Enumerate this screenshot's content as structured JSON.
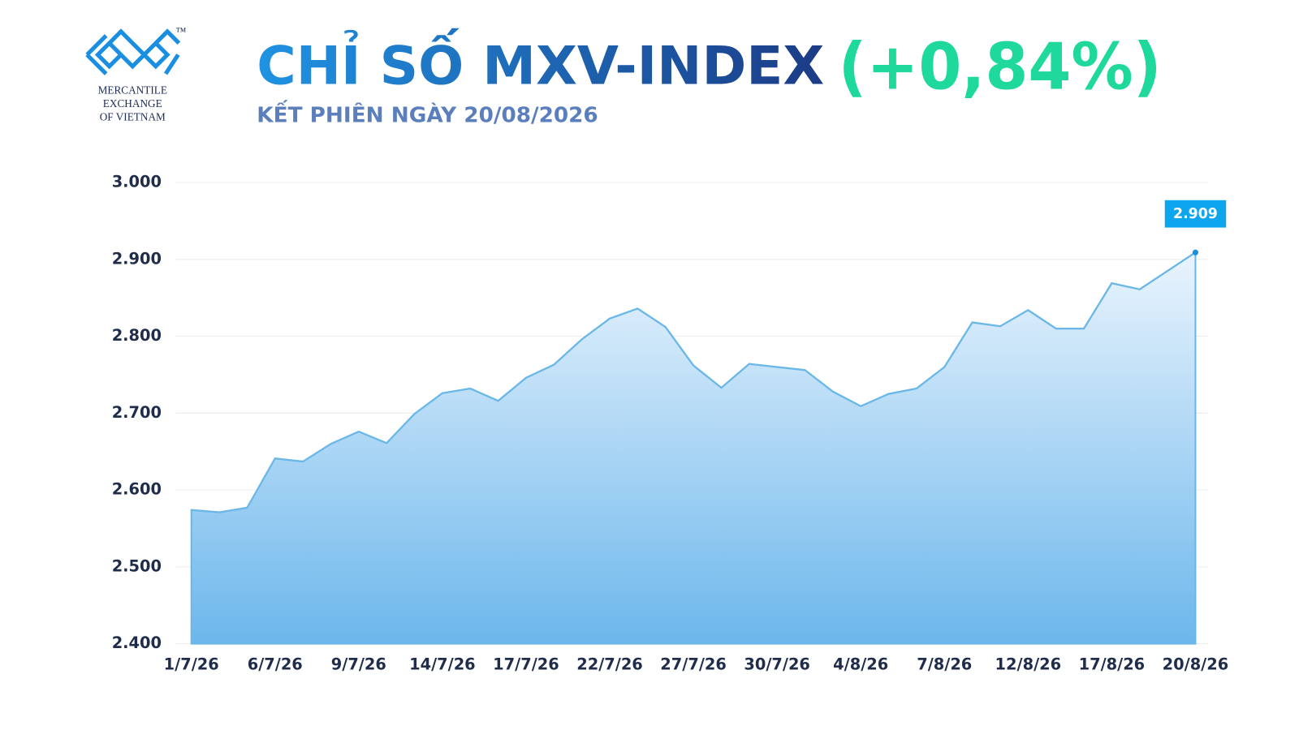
{
  "logo": {
    "mark": "™",
    "lines": [
      "MERCANTILE",
      "EXCHANGE",
      "OF VIETNAM"
    ]
  },
  "chart_data": {
    "type": "area",
    "title": "CHỈ SỐ MXV-INDEX",
    "title_change": "(+0,84%)",
    "subtitle": "KẾT PHIÊN NGÀY 20/08/2026",
    "categories": [
      "1/7/26",
      null,
      null,
      "6/7/26",
      null,
      null,
      "9/7/26",
      null,
      null,
      "14/7/26",
      null,
      null,
      "17/7/26",
      null,
      null,
      "22/7/26",
      null,
      null,
      "27/7/26",
      null,
      null,
      "30/7/26",
      null,
      null,
      "4/8/26",
      null,
      null,
      "7/8/26",
      null,
      null,
      "12/8/26",
      null,
      null,
      "17/8/26",
      null,
      null,
      "20/8/26"
    ],
    "values": [
      2574,
      2571,
      2577,
      2641,
      2637,
      2660,
      2676,
      2661,
      2699,
      2726,
      2732,
      2716,
      2746,
      2763,
      2796,
      2823,
      2836,
      2812,
      2762,
      2733,
      2764,
      2760,
      2756,
      2728,
      2709,
      2725,
      2732,
      2760,
      2818,
      2813,
      2834,
      2810,
      2810,
      2869,
      2861,
      2885,
      2909
    ],
    "value_labels": [
      null,
      null,
      null,
      null,
      null,
      null,
      null,
      null,
      null,
      null,
      null,
      null,
      null,
      null,
      null,
      null,
      null,
      null,
      null,
      null,
      null,
      null,
      null,
      null,
      null,
      null,
      null,
      null,
      null,
      null,
      null,
      null,
      null,
      null,
      null,
      null,
      "2.909"
    ],
    "color": "#6bb8e8",
    "ylim": [
      2400,
      3000
    ],
    "yticks": [
      {
        "value": 2400,
        "label": "2.400"
      },
      {
        "value": 2500,
        "label": "2.500"
      },
      {
        "value": 2600,
        "label": "2.600"
      },
      {
        "value": 2700,
        "label": "2.700"
      },
      {
        "value": 2800,
        "label": "2.800"
      },
      {
        "value": 2900,
        "label": "2.900"
      },
      {
        "value": 3000,
        "label": "3.000"
      }
    ],
    "grid": true
  }
}
